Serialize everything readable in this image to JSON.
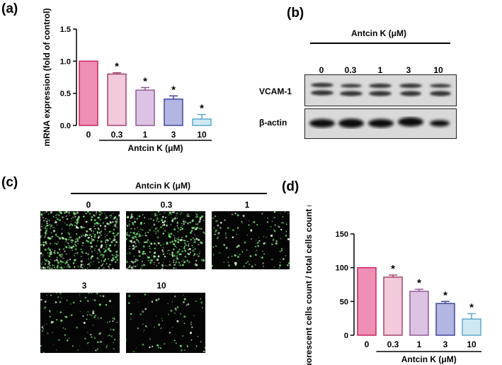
{
  "panels": {
    "a": {
      "label": "(a)"
    },
    "b": {
      "label": "(b)"
    },
    "c": {
      "label": "(c)"
    },
    "d": {
      "label": "(d)"
    }
  },
  "blot": {
    "treatment_label": "Antcin K (μM)",
    "lanes": [
      "0",
      "0.3",
      "1",
      "3",
      "10"
    ],
    "rows": [
      "VCAM-1",
      "β-actin"
    ]
  },
  "microscopy": {
    "treatment_label": "Antcin K (μM)",
    "images": [
      "0",
      "0.3",
      "1",
      "3",
      "10"
    ]
  },
  "colors": {
    "bar_fills": [
      "#ef8fb5",
      "#f3c9dc",
      "#dcc3e3",
      "#b3b5e2",
      "#cfe9f3"
    ],
    "bar_strokes": [
      "#c8245e",
      "#a1456b",
      "#8f5a95",
      "#40489c",
      "#5ea7c9"
    ],
    "fluorescence": "#6fe86f"
  },
  "chart_data": [
    {
      "type": "bar",
      "panel": "a",
      "categories": [
        "0",
        "0.3",
        "1",
        "3",
        "10"
      ],
      "values": [
        1.0,
        0.8,
        0.55,
        0.41,
        0.1
      ],
      "errors": [
        0.0,
        0.02,
        0.04,
        0.05,
        0.07
      ],
      "significance": [
        "",
        "*",
        "*",
        "*",
        "*"
      ],
      "ylabel": "mRNA expression (fold of control)",
      "xlabel": "Antcin  K (μM)",
      "ylim": [
        0,
        1.5
      ],
      "yticks": [
        "0.0",
        "0.5",
        "1.0",
        "1.5"
      ]
    },
    {
      "type": "bar",
      "panel": "d",
      "categories": [
        "0",
        "0.3",
        "1",
        "3",
        "10"
      ],
      "values": [
        100,
        86,
        65,
        47,
        24
      ],
      "errors": [
        0,
        3,
        3,
        3,
        8
      ],
      "significance": [
        "",
        "*",
        "*",
        "*",
        "*"
      ],
      "ylabel": "Fluorescent cells count / total cells count (%)",
      "xlabel": "Antcin K (μM)",
      "ylim": [
        0,
        150
      ],
      "yticks": [
        "0",
        "50",
        "100",
        "150"
      ]
    }
  ]
}
